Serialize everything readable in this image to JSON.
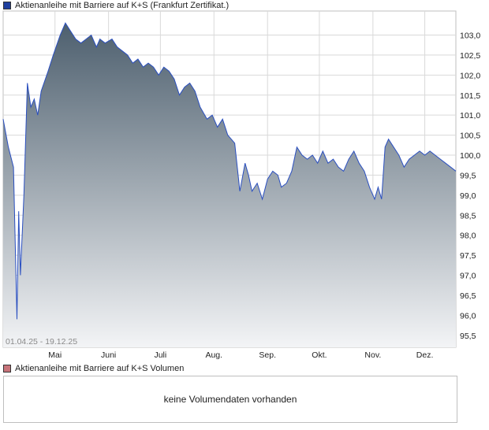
{
  "legend_main": {
    "text": "Aktienanleihe mit Barriere auf K+S  (Frankfurt Zertifikat.)",
    "color": "#1f3f9e"
  },
  "legend_volume": {
    "text": "Aktienanleihe mit Barriere auf K+S  Volumen",
    "color": "#c8747a"
  },
  "date_range": "01.04.25 - 19.12.25",
  "volume_message": "keine Volumendaten vorhanden",
  "chart_data": {
    "type": "area",
    "title": "Aktienanleihe mit Barriere auf K+S",
    "x_range": [
      "01.04.25",
      "19.12.25"
    ],
    "x_ticks": [
      "Mai",
      "Juni",
      "Juli",
      "Aug.",
      "Sep.",
      "Okt.",
      "Nov.",
      "Dez."
    ],
    "y_ticks": [
      "103,0",
      "102,5",
      "102,0",
      "101,5",
      "101,0",
      "100,5",
      "100,0",
      "99,5",
      "99,0",
      "98,5",
      "98,0",
      "97,5",
      "97,0",
      "96,5",
      "96,0",
      "95,5"
    ],
    "ylim": [
      95.2,
      103.6
    ],
    "grid": true,
    "line_color": "#2a4fc0",
    "fill_top": "#4d5f6e",
    "fill_bottom": "#f3f4f6",
    "series": [
      {
        "name": "Aktienanleihe mit Barriere auf K+S",
        "points": [
          [
            "01.04.",
            100.9
          ],
          [
            "04.04.",
            100.2
          ],
          [
            "07.04.",
            99.7
          ],
          [
            "09.04.",
            95.9
          ],
          [
            "10.04.",
            98.6
          ],
          [
            "11.04.",
            97.0
          ],
          [
            "13.04.",
            99.0
          ],
          [
            "15.04.",
            101.8
          ],
          [
            "17.04.",
            101.2
          ],
          [
            "19.04.",
            101.4
          ],
          [
            "21.04.",
            101.0
          ],
          [
            "23.04.",
            101.6
          ],
          [
            "27.04.",
            102.1
          ],
          [
            "30.04.",
            102.5
          ],
          [
            "04.05.",
            103.0
          ],
          [
            "07.05.",
            103.3
          ],
          [
            "10.05.",
            103.1
          ],
          [
            "13.05.",
            102.9
          ],
          [
            "16.05.",
            102.8
          ],
          [
            "19.05.",
            102.9
          ],
          [
            "22.05.",
            103.0
          ],
          [
            "25.05.",
            102.7
          ],
          [
            "27.05.",
            102.9
          ],
          [
            "30.05.",
            102.8
          ],
          [
            "03.06.",
            102.9
          ],
          [
            "06.06.",
            102.7
          ],
          [
            "09.06.",
            102.6
          ],
          [
            "12.06.",
            102.5
          ],
          [
            "15.06.",
            102.3
          ],
          [
            "18.06.",
            102.4
          ],
          [
            "21.06.",
            102.2
          ],
          [
            "24.06.",
            102.3
          ],
          [
            "27.06.",
            102.2
          ],
          [
            "30.06.",
            102.0
          ],
          [
            "03.07.",
            102.2
          ],
          [
            "06.07.",
            102.1
          ],
          [
            "09.07.",
            101.9
          ],
          [
            "12.07.",
            101.5
          ],
          [
            "15.07.",
            101.7
          ],
          [
            "18.07.",
            101.8
          ],
          [
            "21.07.",
            101.6
          ],
          [
            "24.07.",
            101.2
          ],
          [
            "28.07.",
            100.9
          ],
          [
            "31.07.",
            101.0
          ],
          [
            "03.08.",
            100.7
          ],
          [
            "06.08.",
            100.9
          ],
          [
            "09.08.",
            100.5
          ],
          [
            "13.08.",
            100.3
          ],
          [
            "16.08.",
            99.1
          ],
          [
            "19.08.",
            99.8
          ],
          [
            "21.08.",
            99.5
          ],
          [
            "23.08.",
            99.1
          ],
          [
            "26.08.",
            99.3
          ],
          [
            "29.08.",
            98.9
          ],
          [
            "01.09.",
            99.4
          ],
          [
            "04.09.",
            99.6
          ],
          [
            "07.09.",
            99.5
          ],
          [
            "09.09.",
            99.2
          ],
          [
            "12.09.",
            99.3
          ],
          [
            "15.09.",
            99.6
          ],
          [
            "18.09.",
            100.2
          ],
          [
            "21.09.",
            100.0
          ],
          [
            "24.09.",
            99.9
          ],
          [
            "27.09.",
            100.0
          ],
          [
            "30.09.",
            99.8
          ],
          [
            "03.10.",
            100.1
          ],
          [
            "06.10.",
            99.8
          ],
          [
            "09.10.",
            99.9
          ],
          [
            "12.10.",
            99.7
          ],
          [
            "15.10.",
            99.6
          ],
          [
            "18.10.",
            99.9
          ],
          [
            "21.10.",
            100.1
          ],
          [
            "24.10.",
            99.8
          ],
          [
            "27.10.",
            99.6
          ],
          [
            "30.10.",
            99.2
          ],
          [
            "02.11.",
            98.9
          ],
          [
            "04.11.",
            99.2
          ],
          [
            "06.11.",
            98.9
          ],
          [
            "08.11.",
            100.2
          ],
          [
            "10.11.",
            100.4
          ],
          [
            "13.11.",
            100.2
          ],
          [
            "16.11.",
            100.0
          ],
          [
            "19.11.",
            99.7
          ],
          [
            "22.11.",
            99.9
          ],
          [
            "25.11.",
            100.0
          ],
          [
            "28.11.",
            100.1
          ],
          [
            "01.12.",
            100.0
          ],
          [
            "04.12.",
            100.1
          ],
          [
            "07.12.",
            100.0
          ],
          [
            "10.12.",
            99.9
          ],
          [
            "13.12.",
            99.8
          ],
          [
            "16.12.",
            99.7
          ],
          [
            "19.12.",
            99.6
          ]
        ]
      }
    ]
  }
}
